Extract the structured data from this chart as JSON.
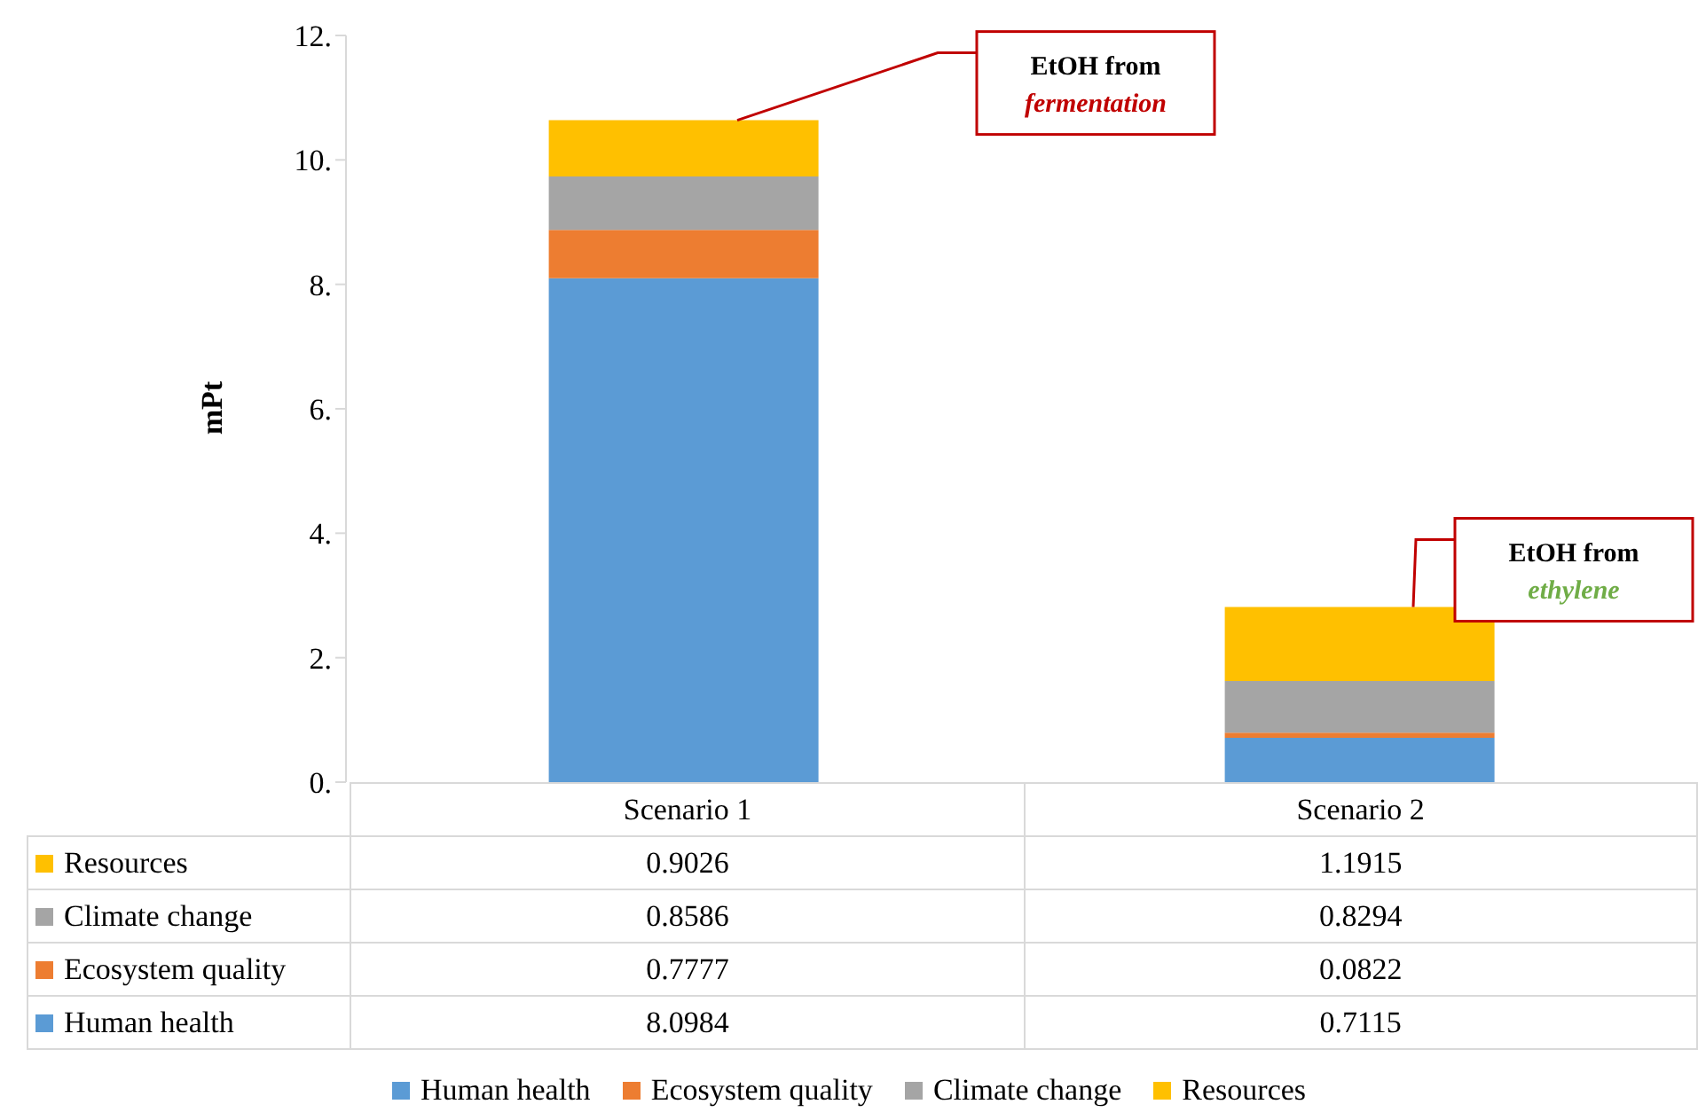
{
  "chart_data": {
    "type": "bar",
    "stacked": true,
    "ylabel": "mPt",
    "categories": [
      "Scenario 1",
      "Scenario 2"
    ],
    "series": [
      {
        "name": "Human health",
        "color": "#5b9bd5",
        "values": [
          8.0984,
          0.7115
        ]
      },
      {
        "name": "Ecosystem quality",
        "color": "#ed7d31",
        "values": [
          0.7777,
          0.0822
        ]
      },
      {
        "name": "Climate change",
        "color": "#a5a5a5",
        "values": [
          0.8586,
          0.8294
        ]
      },
      {
        "name": "Resources",
        "color": "#ffc000",
        "values": [
          0.9026,
          1.1915
        ]
      }
    ],
    "ylim": [
      0,
      12
    ],
    "yticks": [
      {
        "value": 0,
        "label": "0."
      },
      {
        "value": 2,
        "label": "2."
      },
      {
        "value": 4,
        "label": "4."
      },
      {
        "value": 6,
        "label": "6."
      },
      {
        "value": 8,
        "label": "8."
      },
      {
        "value": 10,
        "label": "10."
      },
      {
        "value": 12,
        "label": "12."
      }
    ],
    "data_labels": true,
    "legend": "bottom",
    "grid": false,
    "annotations": [
      "EtOH from fermentation",
      "EtOH from ethylene"
    ]
  }
}
